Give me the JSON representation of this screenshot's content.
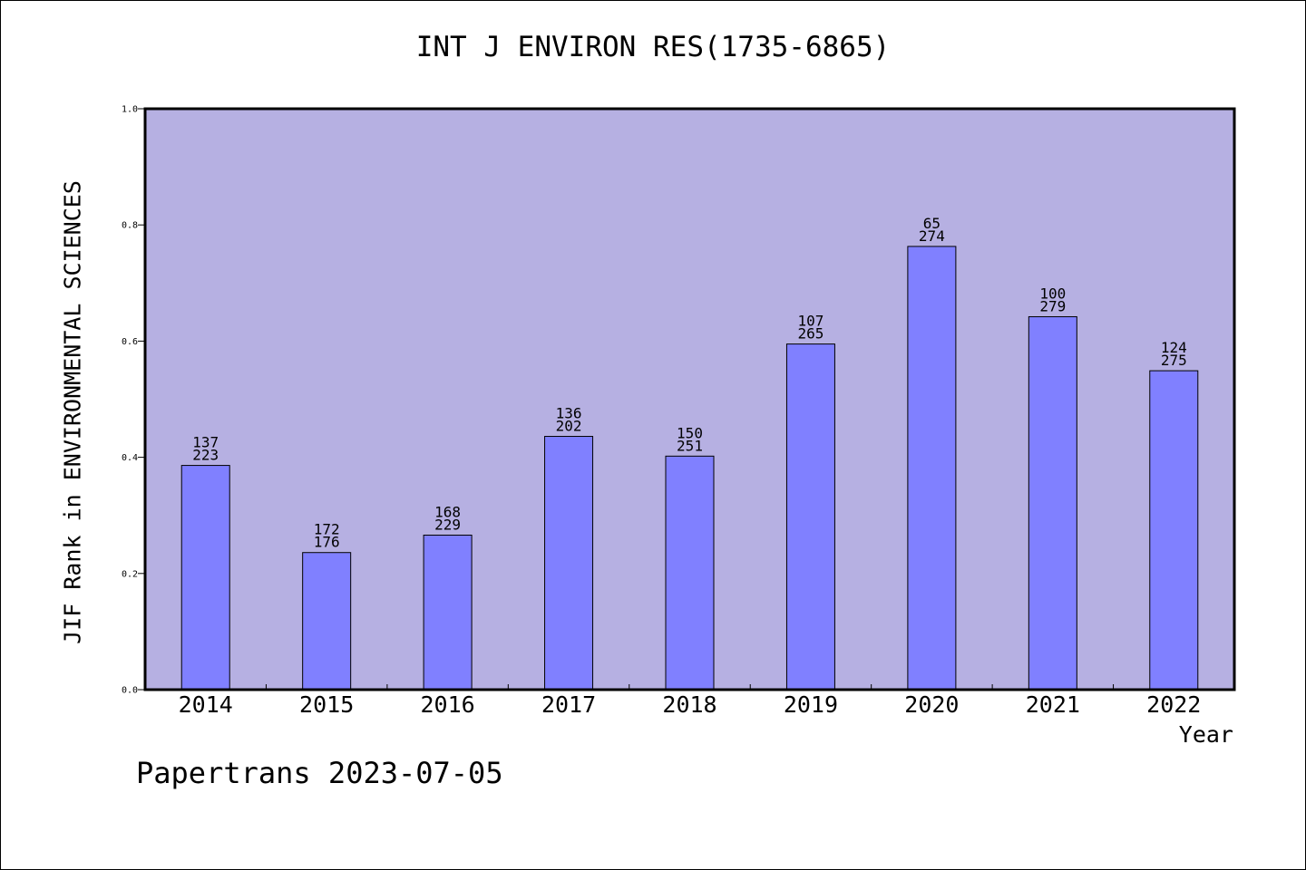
{
  "chart_data": {
    "type": "bar",
    "title": "INT J ENVIRON RES(1735-6865)",
    "xlabel": "Year",
    "ylabel": "JIF Rank in ENVIRONMENTAL SCIENCES",
    "ylim": [
      0,
      1.0
    ],
    "yticks": [
      "0.0",
      "0.2",
      "0.4",
      "0.6",
      "0.8",
      "1.0"
    ],
    "categories": [
      "2014",
      "2015",
      "2016",
      "2017",
      "2018",
      "2019",
      "2020",
      "2021",
      "2022"
    ],
    "values": [
      0.386,
      0.236,
      0.266,
      0.436,
      0.402,
      0.595,
      0.763,
      0.642,
      0.549
    ],
    "labels_top": [
      "137",
      "172",
      "168",
      "136",
      "150",
      "107",
      "65",
      "100",
      "124"
    ],
    "labels_bottom": [
      "223",
      "176",
      "229",
      "202",
      "251",
      "265",
      "274",
      "279",
      "275"
    ],
    "grid": false,
    "plot_background": "#b6b0e2",
    "bar_color": "#8080ff"
  },
  "footer": "Papertrans 2023-07-05"
}
